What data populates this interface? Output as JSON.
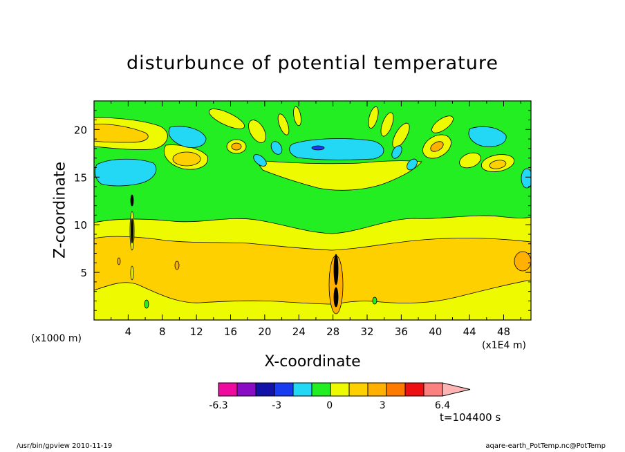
{
  "chart_data": {
    "type": "heatmap",
    "title": "disturbunce of potential temperature",
    "xlabel": "X-coordinate",
    "ylabel": "Z-coordinate",
    "x_unit": "(x1E4 m)",
    "y_unit": "(x1000 m)",
    "xlim": [
      0,
      51.2
    ],
    "ylim": [
      0,
      23
    ],
    "x_ticks": [
      "4",
      "8",
      "12",
      "16",
      "20",
      "24",
      "28",
      "32",
      "36",
      "40",
      "44",
      "48"
    ],
    "y_ticks": [
      "5",
      "10",
      "15",
      "20"
    ],
    "colorbar": {
      "levels": [
        -6.3,
        -5.3,
        -4.3,
        -3.3,
        -2.3,
        -1.3,
        -0.3,
        0.7,
        1.7,
        2.7,
        3.7,
        4.7,
        5.7,
        6.4
      ],
      "colors": [
        "#ee0a9f",
        "#8a0cc4",
        "#1212a8",
        "#1a3cf0",
        "#22d8f4",
        "#22ee22",
        "#eefa00",
        "#ffd000",
        "#ffb000",
        "#ff7a00",
        "#ee1010",
        "#fb8080",
        "#ffb4b4"
      ],
      "tick_labels": [
        "-6.3",
        "-3",
        "0",
        "3",
        "6.4"
      ]
    },
    "time_label": "t=104400 s"
  },
  "footer": {
    "left": "/usr/bin/gpview   2010-11-19",
    "right": "aqare-earth_PotTemp.nc@PotTemp"
  },
  "colors": {
    "band_negative": "#22d8f4",
    "band_zero": "#22ee22",
    "band_weak_positive": "#eefa00",
    "band_positive": "#ffd000",
    "band_strong_positive": "#ffb000",
    "band_very_strong_positive": "#ff7a00"
  }
}
